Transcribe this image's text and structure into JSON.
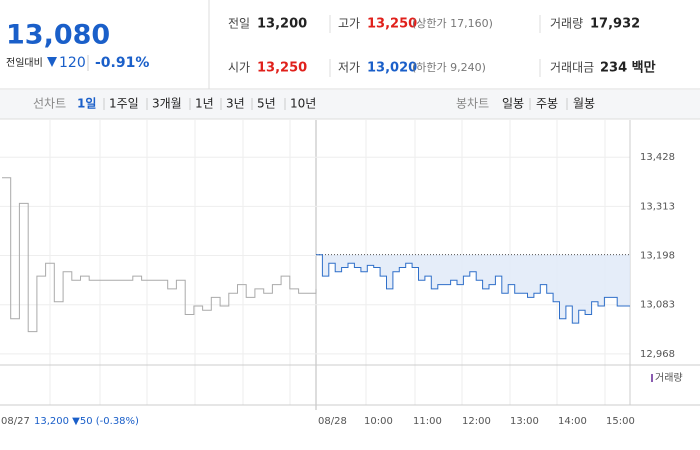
{
  "header": {
    "price": "13,080",
    "change_label": "전일대비",
    "change": "120",
    "change_pct": "-0.91%"
  },
  "stats": [
    [
      {
        "label": "전일",
        "value": "13,200"
      },
      {
        "label": "고가",
        "value": "13,250",
        "note": "(상한가 17,160)"
      },
      {
        "label": "거래량",
        "value": "17,932"
      }
    ],
    [
      {
        "label": "시가",
        "value": "13,250"
      },
      {
        "label": "저가",
        "value": "13,020",
        "note": "(하한가 9,240)"
      },
      {
        "label": "거래대금",
        "value": "234 백만"
      }
    ]
  ],
  "tabs": {
    "line_label": "선차트",
    "line": [
      "1일",
      "1주일",
      "3개월",
      "1년",
      "3년",
      "5년",
      "10년"
    ],
    "candle_label": "봉차트",
    "candle": [
      "일봉",
      "주봉",
      "월봉"
    ]
  },
  "chart_data": {
    "type": "line",
    "ylim": [
      12942,
      13515
    ],
    "yticks": [
      {
        "value": 13428,
        "label": "13,428"
      },
      {
        "value": 13313,
        "label": "13,313"
      },
      {
        "value": 13198,
        "label": "13,198"
      },
      {
        "value": 13083,
        "label": "13,083"
      },
      {
        "value": 12968,
        "label": "12,968"
      }
    ],
    "baseline": 13200,
    "day_labels": [
      "08/27",
      "08/28"
    ],
    "prev_day_summary": "13,200 ▼50 (-0.38%)",
    "xticks": [
      "10:00",
      "11:00",
      "12:00",
      "13:00",
      "14:00",
      "15:00"
    ],
    "volume_legend": "거래량",
    "series": [
      {
        "color": "#aaaaaa",
        "values": [
          13380,
          13050,
          13320,
          13020,
          13150,
          13180,
          13090,
          13160,
          13140,
          13150,
          13140,
          13140,
          13140,
          13140,
          13140,
          13150,
          13140,
          13140,
          13140,
          13120,
          13140,
          13060,
          13080,
          13070,
          13100,
          13080,
          13110,
          13130,
          13100,
          13120,
          13110,
          13130,
          13150,
          13120,
          13110,
          13110,
          13120
        ]
      },
      {
        "color": "#2f6fc9",
        "fill": "#dfe9f8",
        "values": [
          13200,
          13150,
          13180,
          13160,
          13170,
          13180,
          13170,
          13160,
          13175,
          13170,
          13150,
          13120,
          13160,
          13170,
          13180,
          13170,
          13140,
          13150,
          13120,
          13130,
          13130,
          13140,
          13130,
          13150,
          13160,
          13140,
          13120,
          13130,
          13150,
          13110,
          13130,
          13110,
          13110,
          13100,
          13110,
          13130,
          13110,
          13090,
          13050,
          13080,
          13040,
          13070,
          13060,
          13090,
          13080,
          13100,
          13100,
          13080,
          13080,
          13080
        ]
      }
    ]
  }
}
